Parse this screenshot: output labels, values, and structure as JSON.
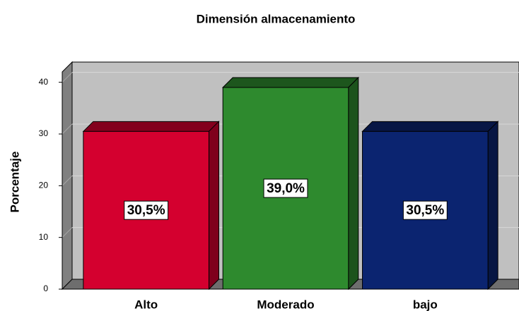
{
  "chart_data": {
    "type": "bar3d",
    "title": "Dimensión almacenamiento",
    "ylabel": "Porcentaje",
    "categories": [
      "Alto",
      "Moderado",
      "bajo"
    ],
    "values": [
      30.5,
      39.0,
      30.5
    ],
    "value_labels": [
      "30,5%",
      "39,0%",
      "30,5%"
    ],
    "colors": [
      "#d4002f",
      "#2e8a2e",
      "#0b2470"
    ],
    "ylim": [
      0,
      42
    ],
    "yticks": [
      0,
      10,
      20,
      30,
      40
    ],
    "grid": true
  }
}
